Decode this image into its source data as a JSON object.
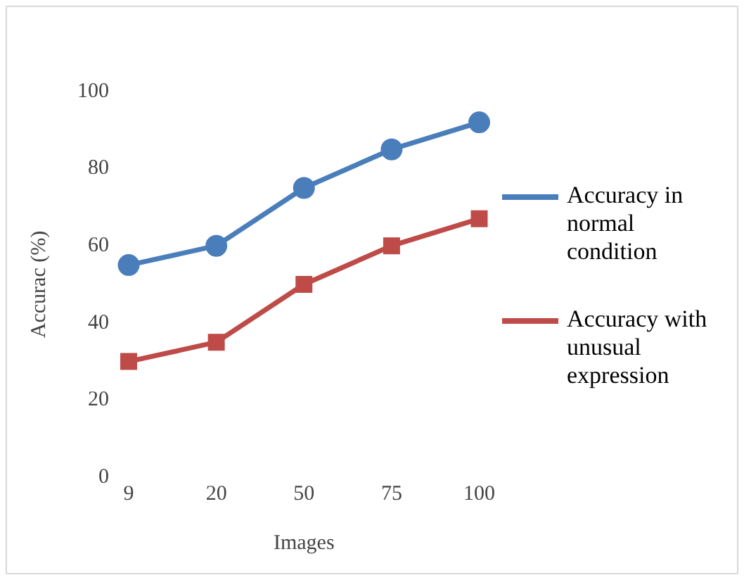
{
  "chart_data": {
    "type": "line",
    "xlabel": "Images",
    "ylabel": "Accurac (%)",
    "categories": [
      "9",
      "20",
      "50",
      "75",
      "100"
    ],
    "ylim": [
      0,
      100
    ],
    "yticks": [
      0,
      20,
      40,
      60,
      80,
      100
    ],
    "grid": false,
    "legend": "right",
    "series": [
      {
        "name": "Accuracy in normal condition",
        "color": "#4a7ebb",
        "marker": "circle",
        "values": [
          55,
          60,
          75,
          85,
          92
        ]
      },
      {
        "name": "Accuracy with unusual expression",
        "color": "#be4b48",
        "marker": "square",
        "values": [
          30,
          35,
          50,
          60,
          67
        ]
      }
    ]
  }
}
